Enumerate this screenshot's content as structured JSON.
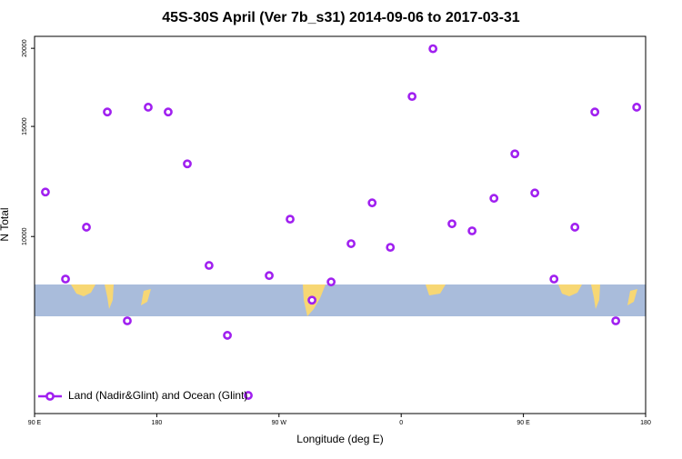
{
  "chart_data": {
    "type": "scatter",
    "title": "45S-30S April (Ver 7b_s31)   2014-09-06 to 2017-03-31",
    "x_label": "Longitude (deg E)",
    "y_label": "N Total",
    "log_y": true,
    "legend": "bottom-left",
    "xlim": [
      90,
      540
    ],
    "xticks": [
      {
        "value": 90,
        "label": "90 E"
      },
      180,
      {
        "value": 270,
        "label": "90 W"
      },
      {
        "value": 360,
        "label": "0"
      },
      {
        "value": 450,
        "label": "90 E"
      },
      {
        "value": 540,
        "label": "180"
      }
    ],
    "ylim": [
      5210,
      20900
    ],
    "yticks": [
      10000,
      15000,
      20000
    ],
    "series": [
      {
        "name": "Land (Nadir&Glint) and Ocean (Glint)",
        "color": "#a020f0",
        "x": [
          98,
          112.8,
          128.2,
          143.6,
          158.3,
          173.7,
          188.4,
          202.5,
          218.5,
          232,
          247.4,
          262.8,
          278.2,
          294.3,
          308.4,
          323.1,
          338.6,
          352,
          368,
          383.4,
          397.4,
          412.2,
          428.3,
          443.7,
          458.4,
          472.5,
          487.9,
          502.6,
          518,
          533.4
        ],
        "values": [
          11780,
          8550,
          10350,
          15820,
          7330,
          16100,
          15820,
          13070,
          8990,
          6950,
          5570,
          8660,
          10660,
          7910,
          8460,
          9740,
          11320,
          9610,
          16750,
          19970,
          10480,
          10210,
          11510,
          13560,
          11740,
          8550,
          10350,
          15820,
          7330,
          16100
        ]
      }
    ]
  }
}
